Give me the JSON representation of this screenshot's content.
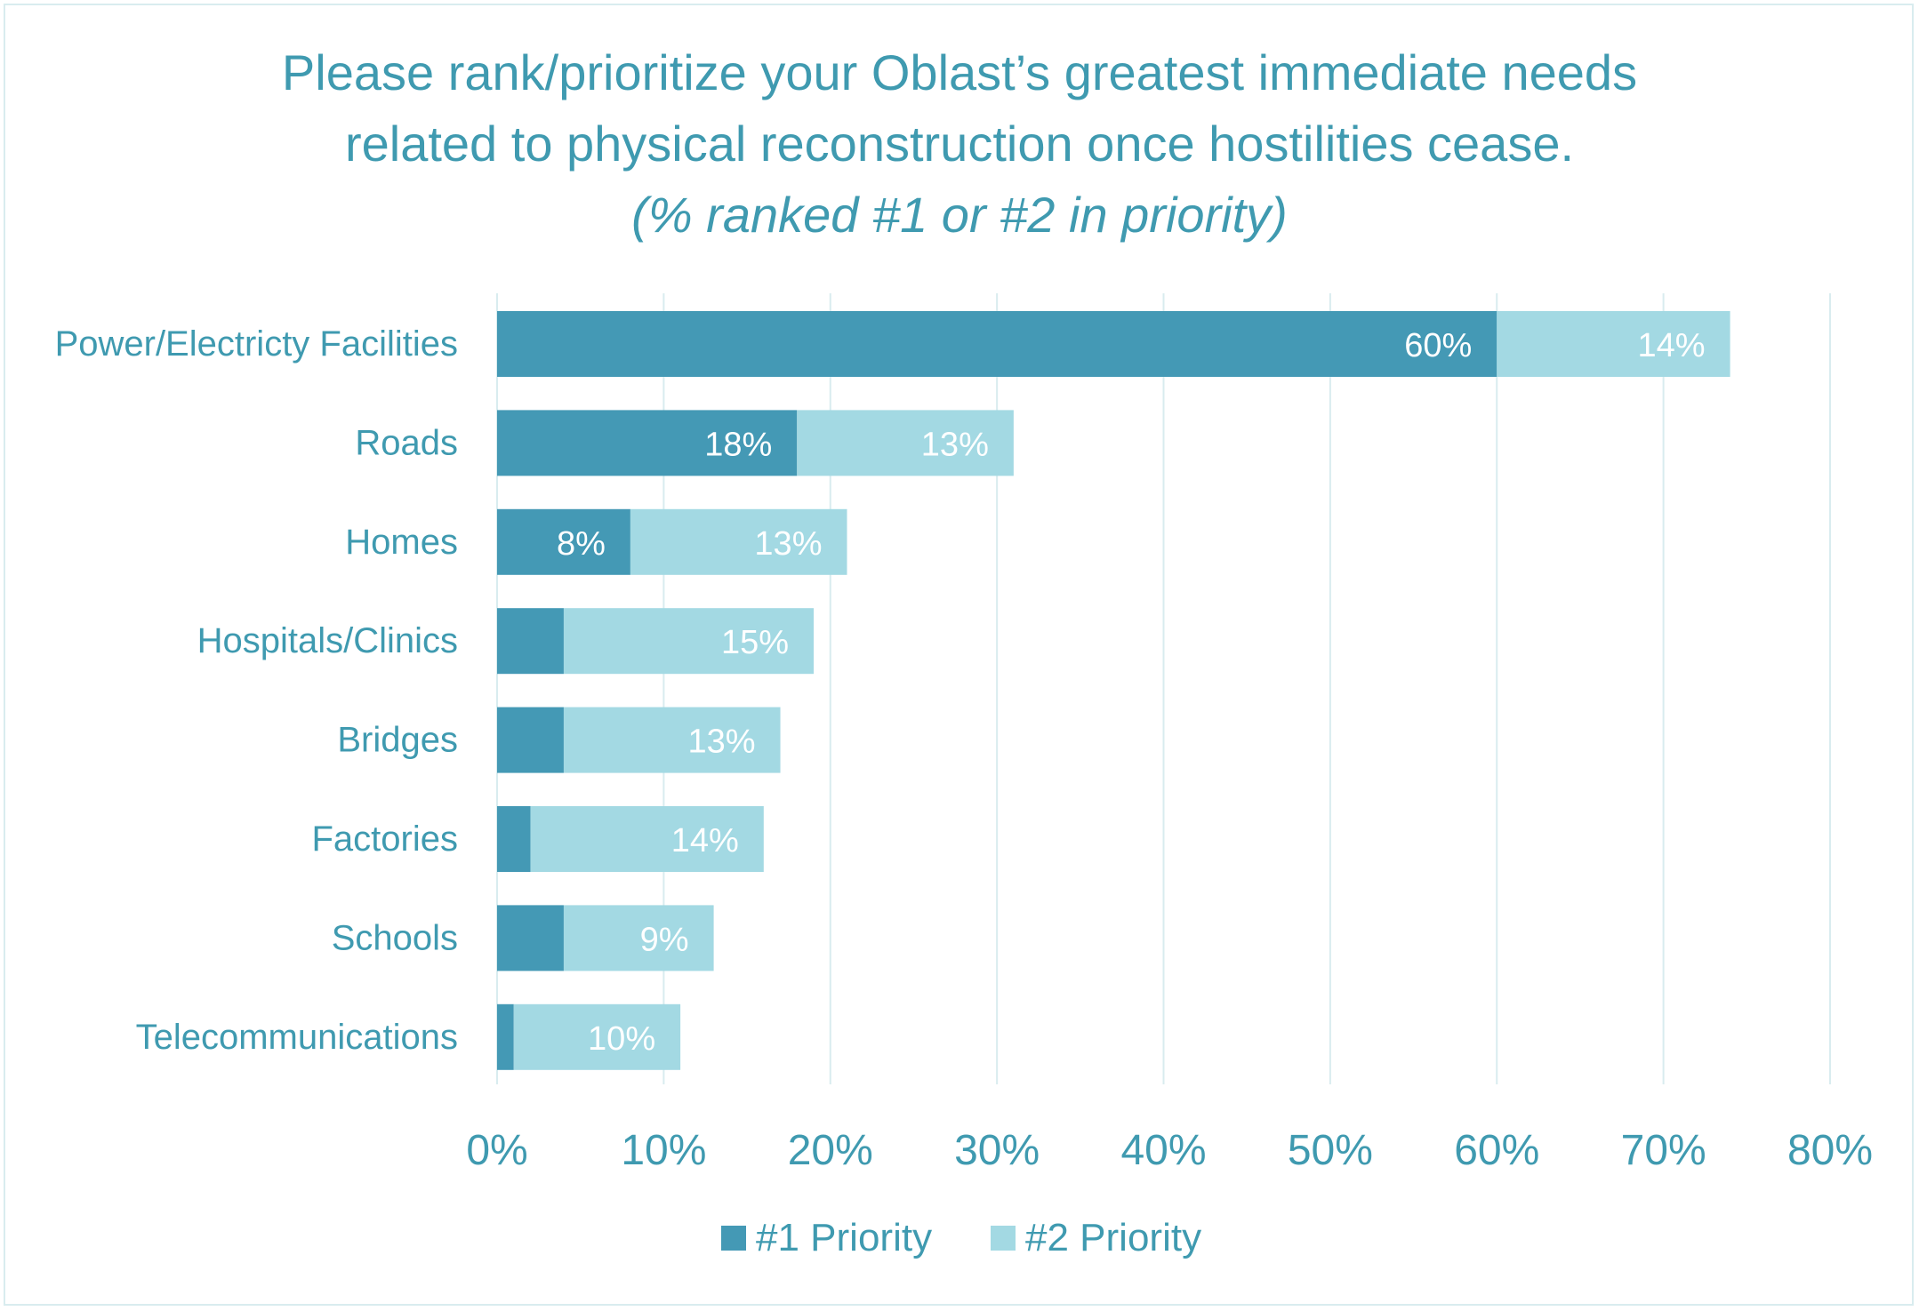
{
  "chart_data": {
    "type": "bar",
    "orientation": "horizontal",
    "stacked": true,
    "title": "Please rank/prioritize your Oblast’s greatest immediate needs related to physical reconstruction once hostilities cease.",
    "title_line1": "Please rank/prioritize your Oblast’s greatest immediate needs",
    "title_line2": "related to physical reconstruction once hostilities cease.",
    "subtitle": "(% ranked #1 or #2 in priority)",
    "xlabel": "",
    "ylabel": "",
    "categories": [
      "Power/Electricty Facilities",
      "Roads",
      "Homes",
      "Hospitals/Clinics",
      "Bridges",
      "Factories",
      "Schools",
      "Telecommunications"
    ],
    "series": [
      {
        "name": "#1 Priority",
        "color": "#4499b5",
        "values": [
          60,
          18,
          8,
          4,
          4,
          2,
          4,
          1
        ],
        "labels": [
          "60%",
          "18%",
          "8%",
          "",
          "",
          "",
          "",
          ""
        ]
      },
      {
        "name": "#2 Priority",
        "color": "#a3d9e3",
        "values": [
          14,
          13,
          13,
          15,
          13,
          14,
          9,
          10
        ],
        "labels": [
          "14%",
          "13%",
          "13%",
          "15%",
          "13%",
          "14%",
          "9%",
          "10%"
        ]
      }
    ],
    "xlim": [
      0,
      80
    ],
    "x_ticks": [
      "0%",
      "10%",
      "20%",
      "30%",
      "40%",
      "50%",
      "60%",
      "70%",
      "80%"
    ],
    "grid": true,
    "legend": "bottom",
    "colors": {
      "text": "#3f9ab0",
      "grid": "#d9ecef",
      "data_label": "#ffffff"
    }
  }
}
